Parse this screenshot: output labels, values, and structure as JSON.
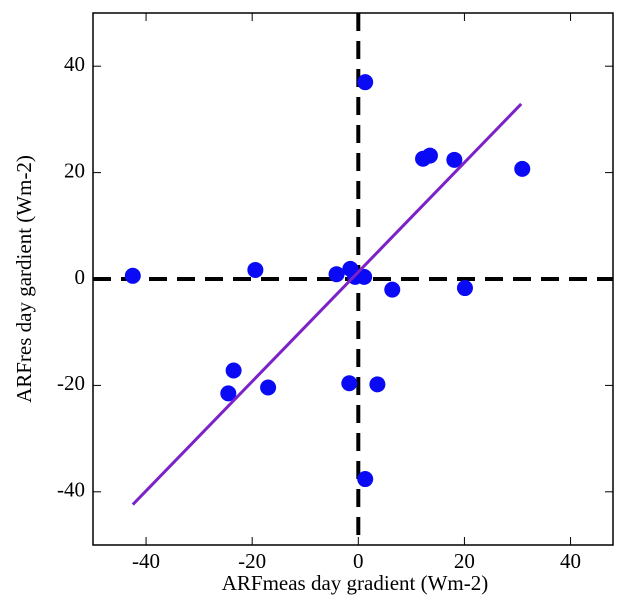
{
  "chart_data": {
    "type": "scatter",
    "xlabel": "ARFmeas day gradient (Wm-2)",
    "ylabel": "ARFres day gardient (Wm-2)",
    "xlim": [
      -50,
      48
    ],
    "ylim": [
      -50,
      50
    ],
    "xticks": [
      -40,
      -20,
      0,
      20,
      40
    ],
    "yticks": [
      -40,
      -20,
      0,
      20,
      40
    ],
    "zero_lines": true,
    "series": [
      {
        "mode": "markers",
        "color": "#0a0af5",
        "x": [
          -42.5,
          -19.4,
          -23.5,
          -24.5,
          -17,
          -4.1,
          -1.5,
          -0.6,
          1.1,
          1.3,
          6.4,
          -1.7,
          3.6,
          1.3,
          12.2,
          13.5,
          18.1,
          30.9,
          20.1
        ],
        "values": [
          0.6,
          1.7,
          -17.2,
          -21.5,
          -20.4,
          0.9,
          1.9,
          0.4,
          0.4,
          37,
          -2,
          -19.6,
          -19.8,
          -37.6,
          22.6,
          23.2,
          22.4,
          20.7,
          -1.7
        ]
      },
      {
        "mode": "line",
        "color": "#7b22c8",
        "x": [
          -42.5,
          30.7
        ],
        "values": [
          -42.4,
          32.9
        ]
      }
    ]
  }
}
